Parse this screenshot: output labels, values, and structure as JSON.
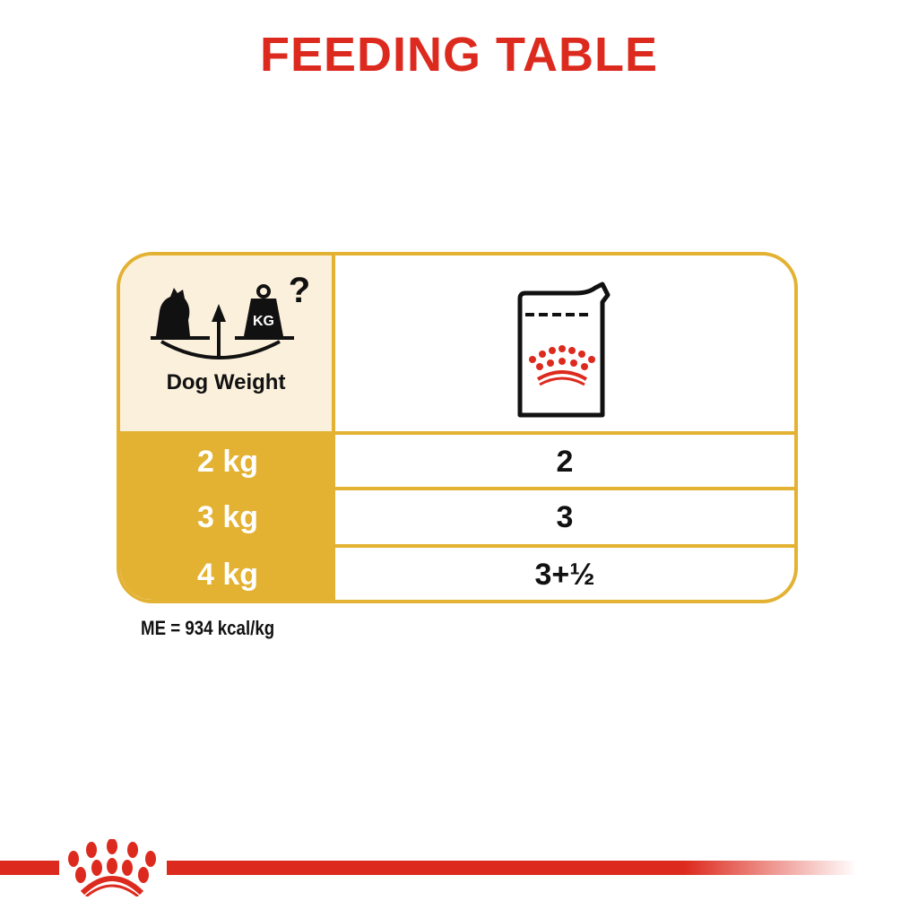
{
  "title": "FEEDING TABLE",
  "header": {
    "weight_label": "Dog Weight",
    "weight_icon": "dog-scale-weight-icon",
    "kg_label": "KG",
    "food_icon": "wet-food-pouch-icon"
  },
  "rows": [
    {
      "weight": "2 kg",
      "pouches": "2"
    },
    {
      "weight": "3 kg",
      "pouches": "3"
    },
    {
      "weight": "4 kg",
      "pouches": "3+½"
    }
  ],
  "footnote": "ME = 934 kcal/kg",
  "colors": {
    "brand_red": "#dd2a1e",
    "gold": "#e3b232",
    "cream": "#fbf0dc"
  },
  "logo": "royal-canin-crown"
}
